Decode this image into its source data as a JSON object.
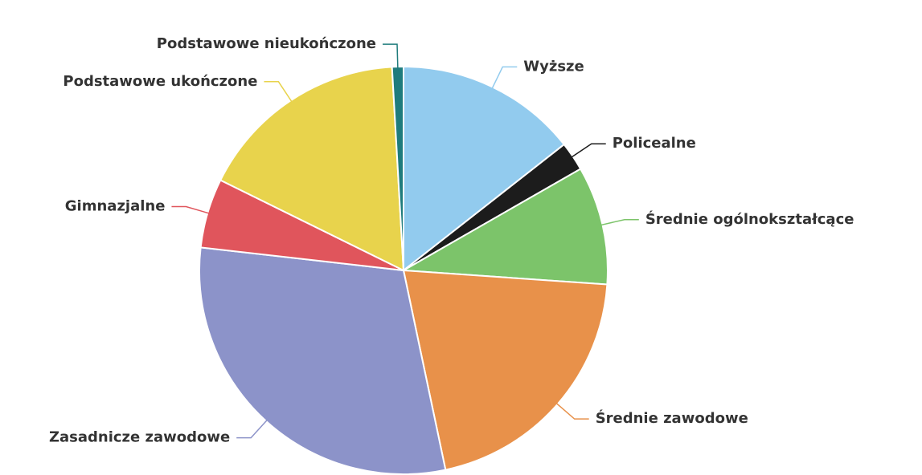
{
  "chart_data": {
    "type": "pie",
    "categories": [
      "Wyższe",
      "Policealne",
      "Średnie ogólnokształcące",
      "Średnie zawodowe",
      "Zasadnicze zawodowe",
      "Gimnazjalne",
      "Podstawowe ukończone",
      "Podstawowe nieukończone"
    ],
    "values": [
      14.4,
      2.3,
      9.4,
      20.6,
      30.1,
      5.5,
      16.8,
      0.9
    ],
    "colors": [
      "#92cbee",
      "#1c1c1c",
      "#7cc46a",
      "#e8914a",
      "#8c93c9",
      "#e0555c",
      "#e8d34c",
      "#1f7c7c"
    ]
  }
}
